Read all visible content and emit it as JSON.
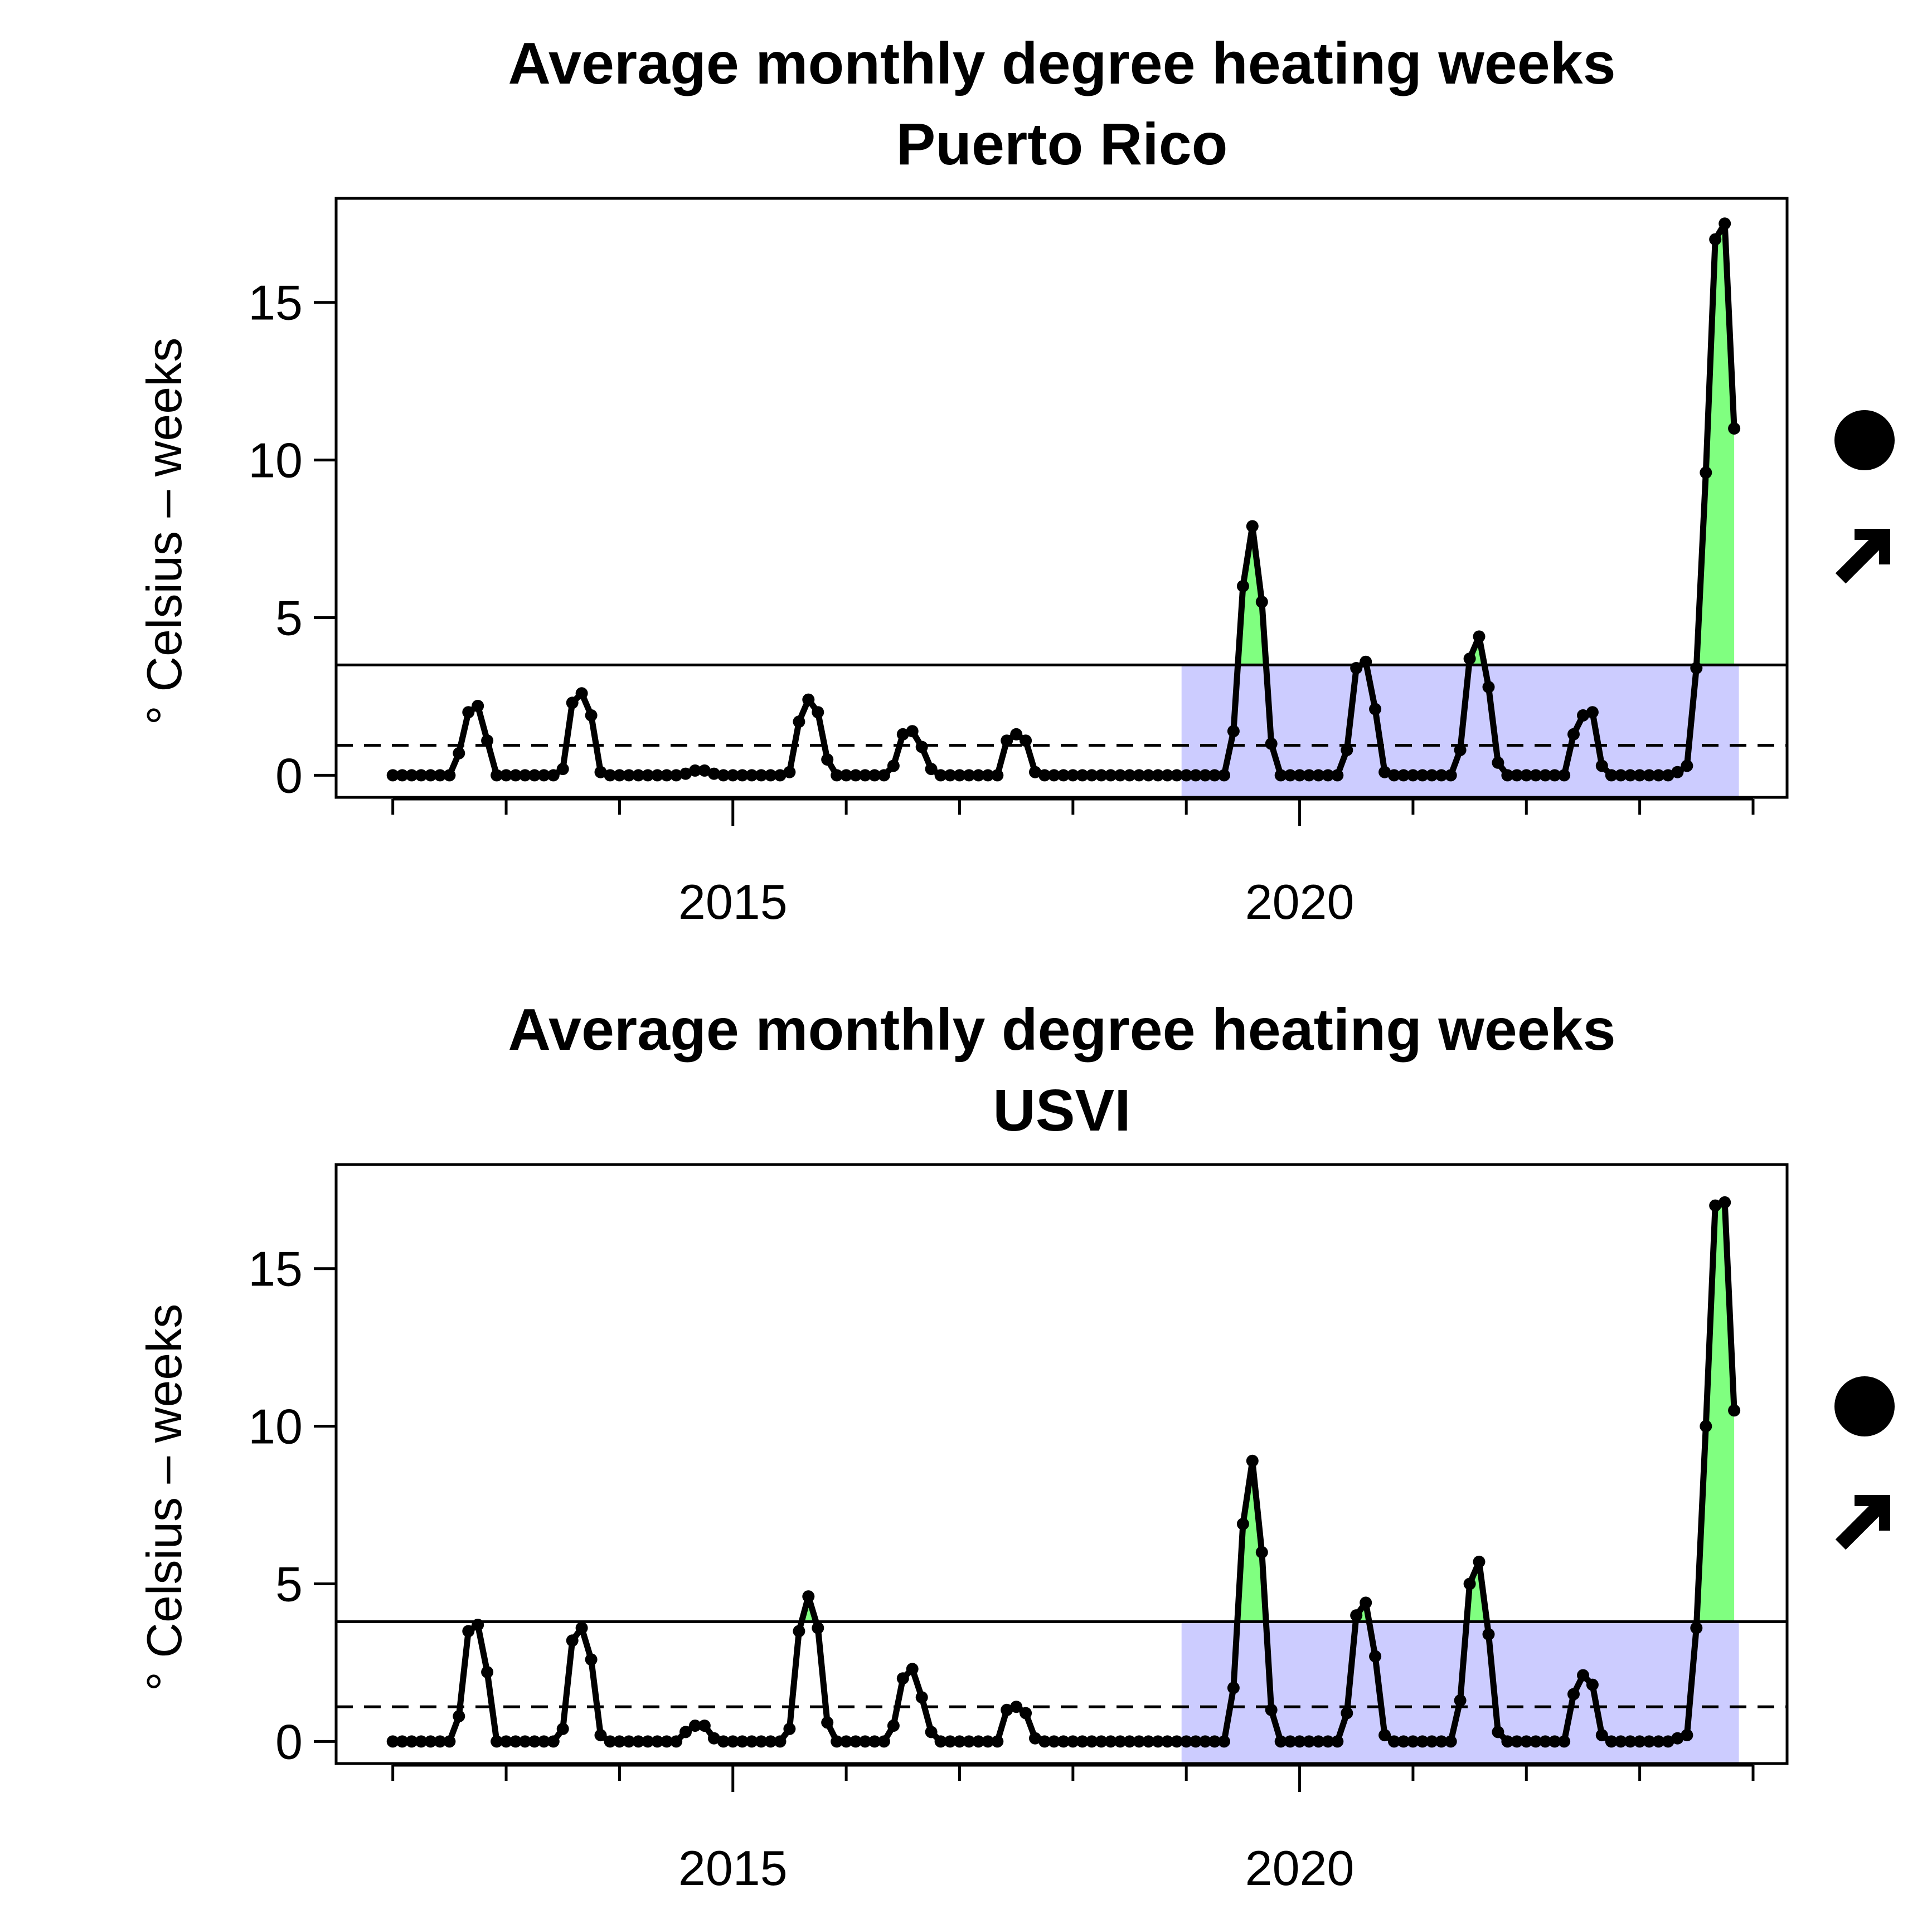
{
  "chart_data": [
    {
      "type": "line",
      "title": "Average monthly degree heating weeks",
      "subtitle": "Puerto Rico",
      "xlabel": "",
      "ylabel": "° Celsius – weeks",
      "x_ticks": [
        "2015",
        "2020"
      ],
      "y_ticks": [
        "0",
        "5",
        "10",
        "15"
      ],
      "xlim": [
        2011.5,
        2024.3
      ],
      "ylim": [
        -0.7,
        18.3
      ],
      "x_start": "2012-01",
      "x_step": "1 month",
      "recent_period_start": "2019-01",
      "mean": 0.95,
      "upper_threshold": 3.5,
      "trend_symbols": [
        "above-mean",
        "increasing"
      ],
      "colors": {
        "line": "#000000",
        "highlight_above": "#80ff80",
        "recent_period": "#ccccff"
      },
      "series": [
        {
          "values": [
            0,
            0,
            0,
            0,
            0,
            0,
            0,
            0.7,
            2.0,
            2.2,
            1.1,
            0,
            0,
            0,
            0,
            0,
            0,
            0,
            0.2,
            2.3,
            2.6,
            1.9,
            0.1,
            0,
            0,
            0,
            0,
            0,
            0,
            0,
            0,
            0.05,
            0.15,
            0.15,
            0.05,
            0,
            0,
            0,
            0,
            0,
            0,
            0,
            0.1,
            1.7,
            2.4,
            2.0,
            0.5,
            0,
            0,
            0,
            0,
            0,
            0,
            0.3,
            1.3,
            1.4,
            0.9,
            0.2,
            0,
            0,
            0,
            0,
            0,
            0,
            0,
            1.1,
            1.3,
            1.1,
            0.1,
            0,
            0,
            0,
            0,
            0,
            0,
            0,
            0,
            0,
            0,
            0,
            0,
            0,
            0,
            0,
            0,
            0,
            0,
            0,
            0,
            1.4,
            6.0,
            7.9,
            5.5,
            1.0,
            0,
            0,
            0,
            0,
            0,
            0,
            0,
            0.8,
            3.4,
            3.6,
            2.1,
            0.1,
            0,
            0,
            0,
            0,
            0,
            0,
            0,
            0.8,
            3.7,
            4.4,
            2.8,
            0.4,
            0,
            0,
            0,
            0,
            0,
            0,
            0,
            1.3,
            1.9,
            2.0,
            0.3,
            0,
            0,
            0,
            0,
            0,
            0,
            0,
            0.1,
            0.3,
            3.4,
            9.6,
            17.0,
            17.5,
            11.0
          ]
        }
      ]
    },
    {
      "type": "line",
      "title": "Average monthly degree heating weeks",
      "subtitle": "USVI",
      "xlabel": "",
      "ylabel": "° Celsius – weeks",
      "x_ticks": [
        "2015",
        "2020"
      ],
      "y_ticks": [
        "0",
        "5",
        "10",
        "15"
      ],
      "xlim": [
        2011.5,
        2024.3
      ],
      "ylim": [
        -0.7,
        18.3
      ],
      "x_start": "2012-01",
      "x_step": "1 month",
      "recent_period_start": "2019-01",
      "mean": 1.1,
      "upper_threshold": 3.8,
      "trend_symbols": [
        "above-mean",
        "increasing"
      ],
      "colors": {
        "line": "#000000",
        "highlight_above": "#80ff80",
        "recent_period": "#ccccff"
      },
      "series": [
        {
          "values": [
            0,
            0,
            0,
            0,
            0,
            0,
            0,
            0.8,
            3.5,
            3.7,
            2.2,
            0,
            0,
            0,
            0,
            0,
            0,
            0,
            0.4,
            3.2,
            3.6,
            2.6,
            0.2,
            0,
            0,
            0,
            0,
            0,
            0,
            0,
            0,
            0.3,
            0.5,
            0.5,
            0.1,
            0,
            0,
            0,
            0,
            0,
            0,
            0,
            0.4,
            3.5,
            4.6,
            3.6,
            0.6,
            0,
            0,
            0,
            0,
            0,
            0,
            0.5,
            2.0,
            2.3,
            1.4,
            0.3,
            0,
            0,
            0,
            0,
            0,
            0,
            0,
            1.0,
            1.1,
            0.9,
            0.1,
            0,
            0,
            0,
            0,
            0,
            0,
            0,
            0,
            0,
            0,
            0,
            0,
            0,
            0,
            0,
            0,
            0,
            0,
            0,
            0,
            1.7,
            6.9,
            8.9,
            6.0,
            1.0,
            0,
            0,
            0,
            0,
            0,
            0,
            0,
            0.9,
            4.0,
            4.4,
            2.7,
            0.2,
            0,
            0,
            0,
            0,
            0,
            0,
            0,
            1.3,
            5.0,
            5.7,
            3.4,
            0.3,
            0,
            0,
            0,
            0,
            0,
            0,
            0,
            1.5,
            2.1,
            1.8,
            0.2,
            0,
            0,
            0,
            0,
            0,
            0,
            0,
            0.1,
            0.2,
            3.6,
            10.0,
            17.0,
            17.1,
            10.5
          ]
        }
      ]
    }
  ]
}
